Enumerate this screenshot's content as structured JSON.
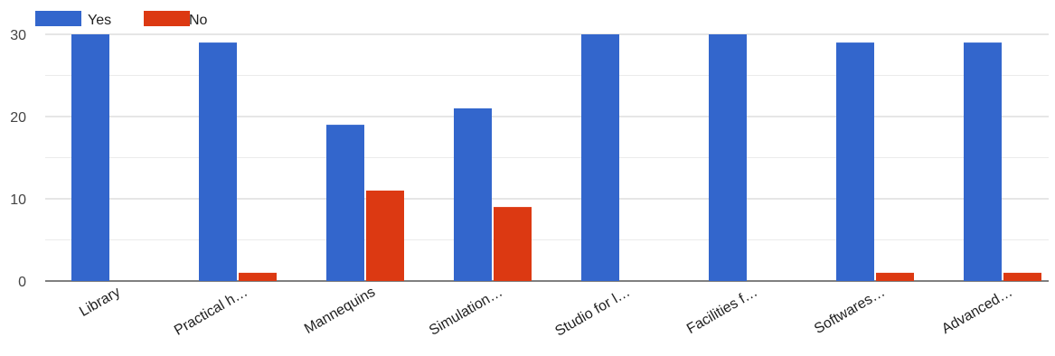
{
  "chart_data": {
    "type": "bar",
    "categories": [
      "Library",
      "Practical h…",
      "Mannequins",
      "Simulation…",
      "Studio for l…",
      "Facilities f…",
      "Softwares…",
      "Advanced…"
    ],
    "series": [
      {
        "name": "Yes",
        "color": "#3366cc",
        "values": [
          30,
          29,
          19,
          21,
          30,
          30,
          29,
          29
        ]
      },
      {
        "name": "No",
        "color": "#dc3912",
        "values": [
          0,
          1,
          11,
          9,
          0,
          0,
          1,
          1
        ]
      }
    ],
    "y_ticks": [
      0,
      10,
      20,
      30
    ],
    "ylim": [
      0,
      30
    ],
    "grid": true,
    "legend_position": "top-left"
  }
}
